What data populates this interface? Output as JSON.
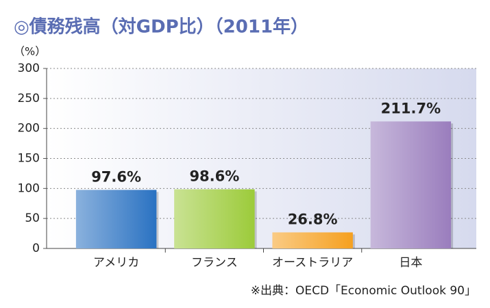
{
  "chart_data": {
    "type": "bar",
    "title": "◎債務残高（対GDP比）（2011年）",
    "y_label": "（%）",
    "categories": [
      "アメリカ",
      "フランス",
      "オーストラリア",
      "日本"
    ],
    "values": [
      97.6,
      98.6,
      26.8,
      211.7
    ],
    "value_labels": [
      "97.6%",
      "98.6%",
      "26.8%",
      "211.7%"
    ],
    "colors": [
      "#2a72c2",
      "#9ccb3a",
      "#f5a020",
      "#9a7dbd"
    ],
    "ylim": [
      0,
      300
    ],
    "yticks": [
      0,
      50,
      100,
      150,
      200,
      250,
      300
    ],
    "grid": true,
    "source": "※出典：OECD「Economic Outlook 90」"
  }
}
